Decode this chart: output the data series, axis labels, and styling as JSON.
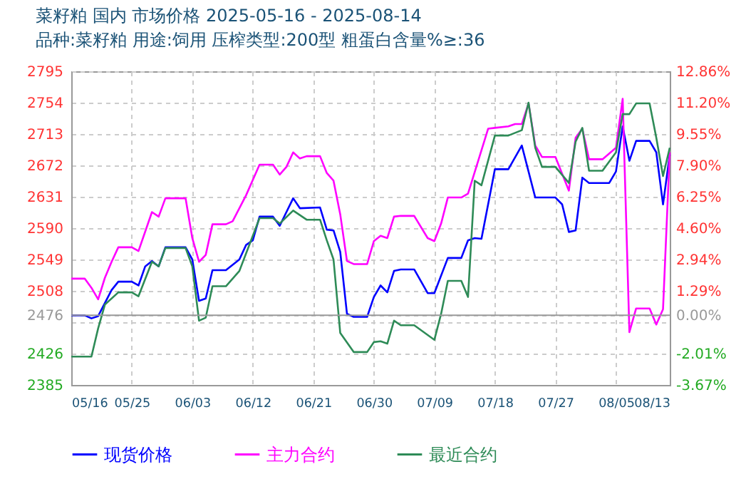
{
  "chart_data": {
    "type": "line",
    "title": "菜籽粕 国内 市场价格 2025-05-16 - 2025-08-14",
    "subtitle": "品种:菜籽粕 用途:饲用 压榨类型:200型 粗蛋白含量%≥:36",
    "xlim": [
      "--05-16",
      "--08-13"
    ],
    "xticks": [
      {
        "value": "--05-16",
        "label": "05/16"
      },
      {
        "value": "--05-25",
        "label": "05/25"
      },
      {
        "value": "--06-03",
        "label": "06/03"
      },
      {
        "value": "--06-12",
        "label": "06/12"
      },
      {
        "value": "--06-21",
        "label": "06/21"
      },
      {
        "value": "--06-30",
        "label": "06/30"
      },
      {
        "value": "--07-09",
        "label": "07/09"
      },
      {
        "value": "--07-18",
        "label": "07/18"
      },
      {
        "value": "--07-27",
        "label": "07/27"
      },
      {
        "value": "--08-05",
        "label": "08/05"
      },
      {
        "value": "--08-13",
        "label": "08/13"
      }
    ],
    "ylim": [
      2385,
      2795
    ],
    "yticks": [
      2385,
      2426,
      {
        "value": 2467,
        "label": null
      },
      2476,
      2508,
      2549,
      2590,
      2631,
      2672,
      2713,
      2754,
      2795
    ],
    "y2lim": [
      -3.67,
      12.86
    ],
    "y2ticks": [
      {
        "value": -3.67,
        "label": "-3.67%"
      },
      {
        "value": -2.01,
        "label": "-2.01%"
      },
      {
        "value": 0,
        "label": "0.00%"
      },
      {
        "value": 1.29,
        "label": "1.29%"
      },
      {
        "value": 2.94,
        "label": "2.94%"
      },
      {
        "value": 4.6,
        "label": "4.60%"
      },
      {
        "value": 6.25,
        "label": "6.25%"
      },
      {
        "value": 7.9,
        "label": "7.90%"
      },
      {
        "value": 9.55,
        "label": "9.55%"
      },
      {
        "value": 11.2,
        "label": "11.20%"
      },
      {
        "value": 12.86,
        "label": "12.86%"
      }
    ],
    "ref_lines": [
      {
        "axis": "y2",
        "value": 0,
        "color": "#999999"
      }
    ],
    "grid": true,
    "legend": "bottom",
    "series": [
      {
        "name": "现货价格",
        "color": "#0000ff",
        "x": [
          "--05-16",
          "--05-18",
          "--05-19",
          "--05-20",
          "--05-22",
          "--05-23",
          "--05-25",
          "--05-26",
          "--05-27",
          "--05-28",
          "--05-29",
          "--05-30",
          "--06-02",
          "--06-03",
          "--06-04",
          "--06-05",
          "--06-06",
          "--06-08",
          "--06-10",
          "--06-11",
          "--06-12",
          "--06-13",
          "--06-15",
          "--06-16",
          "--06-18",
          "--06-19",
          "--06-22",
          "--06-23",
          "--06-24",
          "--06-25",
          "--06-26",
          "--06-27",
          "--06-29",
          "--06-30",
          "--07-01",
          "--07-02",
          "--07-03",
          "--07-04",
          "--07-06",
          "--07-08",
          "--07-09",
          "--07-11",
          "--07-13",
          "--07-14",
          "--07-15",
          "--07-16",
          "--07-18",
          "--07-20",
          "--07-22",
          "--07-24",
          "--07-27",
          "--07-28",
          "--07-29",
          "--07-30",
          "--07-31",
          "--08-01",
          "--08-04",
          "--08-05",
          "--08-06",
          "--08-07",
          "--08-08",
          "--08-10",
          "--08-11",
          "--08-12",
          "--08-13"
        ],
        "values": [
          2476,
          2476,
          2472,
          2475,
          2509,
          2520,
          2520,
          2515,
          2540,
          2547,
          2540,
          2565,
          2565,
          2549,
          2495,
          2498,
          2535,
          2535,
          2549,
          2568,
          2574,
          2605,
          2605,
          2593,
          2629,
          2616,
          2617,
          2588,
          2587,
          2559,
          2478,
          2474,
          2474,
          2500,
          2515,
          2506,
          2534,
          2536,
          2536,
          2505,
          2505,
          2551,
          2551,
          2574,
          2577,
          2576,
          2667,
          2667,
          2698,
          2630,
          2630,
          2621,
          2585,
          2587,
          2656,
          2649,
          2649,
          2664,
          2723,
          2678,
          2704,
          2704,
          2689,
          2621,
          2686
        ]
      },
      {
        "name": "主力合约",
        "color": "#ff00ff",
        "x": [
          "--05-16",
          "--05-18",
          "--05-19",
          "--05-20",
          "--05-21",
          "--05-22",
          "--05-23",
          "--05-25",
          "--05-26",
          "--05-28",
          "--05-29",
          "--05-30",
          "--06-02",
          "--06-03",
          "--06-04",
          "--06-05",
          "--06-06",
          "--06-08",
          "--06-09",
          "--06-11",
          "--06-13",
          "--06-15",
          "--06-16",
          "--06-17",
          "--06-18",
          "--06-19",
          "--06-20",
          "--06-22",
          "--06-23",
          "--06-24",
          "--06-25",
          "--06-26",
          "--06-27",
          "--06-29",
          "--06-30",
          "--07-01",
          "--07-02",
          "--07-03",
          "--07-04",
          "--07-06",
          "--07-08",
          "--07-09",
          "--07-10",
          "--07-11",
          "--07-13",
          "--07-14",
          "--07-17",
          "--07-18",
          "--07-20",
          "--07-21",
          "--07-22",
          "--07-23",
          "--07-24",
          "--07-25",
          "--07-27",
          "--07-29",
          "--07-30",
          "--07-31",
          "--08-01",
          "--08-03",
          "--08-05",
          "--08-06",
          "--08-07",
          "--08-08",
          "--08-10",
          "--08-11",
          "--08-12",
          "--08-13"
        ],
        "values": [
          2524,
          2524,
          2512,
          2497,
          2525,
          2546,
          2565,
          2565,
          2560,
          2611,
          2605,
          2629,
          2629,
          2577,
          2546,
          2555,
          2595,
          2595,
          2599,
          2633,
          2673,
          2673,
          2660,
          2670,
          2689,
          2681,
          2684,
          2684,
          2662,
          2652,
          2608,
          2547,
          2543,
          2543,
          2573,
          2580,
          2577,
          2605,
          2606,
          2606,
          2577,
          2573,
          2596,
          2630,
          2630,
          2635,
          2720,
          2721,
          2723,
          2726,
          2726,
          2753,
          2698,
          2683,
          2683,
          2639,
          2708,
          2720,
          2680,
          2680,
          2695,
          2759,
          2454,
          2485,
          2485,
          2464,
          2484,
          2689
        ]
      },
      {
        "name": "最近合约",
        "color": "#2e8b57",
        "x": [
          "--05-16",
          "--05-19",
          "--05-20",
          "--05-21",
          "--05-23",
          "--05-25",
          "--05-26",
          "--05-28",
          "--05-29",
          "--05-30",
          "--06-02",
          "--06-03",
          "--06-04",
          "--06-05",
          "--06-06",
          "--06-08",
          "--06-10",
          "--06-12",
          "--06-13",
          "--06-15",
          "--06-16",
          "--06-18",
          "--06-20",
          "--06-22",
          "--06-23",
          "--06-24",
          "--06-25",
          "--06-27",
          "--06-29",
          "--06-30",
          "--07-01",
          "--07-02",
          "--07-03",
          "--07-04",
          "--07-06",
          "--07-09",
          "--07-10",
          "--07-11",
          "--07-13",
          "--07-14",
          "--07-15",
          "--07-16",
          "--07-18",
          "--07-20",
          "--07-22",
          "--07-23",
          "--07-24",
          "--07-25",
          "--07-27",
          "--07-29",
          "--07-30",
          "--07-31",
          "--08-01",
          "--08-03",
          "--08-05",
          "--08-06",
          "--08-07",
          "--08-08",
          "--08-10",
          "--08-11",
          "--08-12",
          "--08-13"
        ],
        "values": [
          2422,
          2422,
          2459,
          2490,
          2506,
          2506,
          2501,
          2546,
          2540,
          2564,
          2564,
          2540,
          2469,
          2473,
          2514,
          2514,
          2534,
          2580,
          2603,
          2603,
          2596,
          2613,
          2601,
          2601,
          2574,
          2549,
          2453,
          2428,
          2428,
          2441,
          2442,
          2439,
          2469,
          2463,
          2463,
          2444,
          2478,
          2521,
          2521,
          2500,
          2652,
          2646,
          2711,
          2711,
          2718,
          2754,
          2695,
          2670,
          2670,
          2649,
          2703,
          2721,
          2665,
          2665,
          2689,
          2739,
          2739,
          2753,
          2753,
          2708,
          2658,
          2695
        ]
      }
    ]
  }
}
